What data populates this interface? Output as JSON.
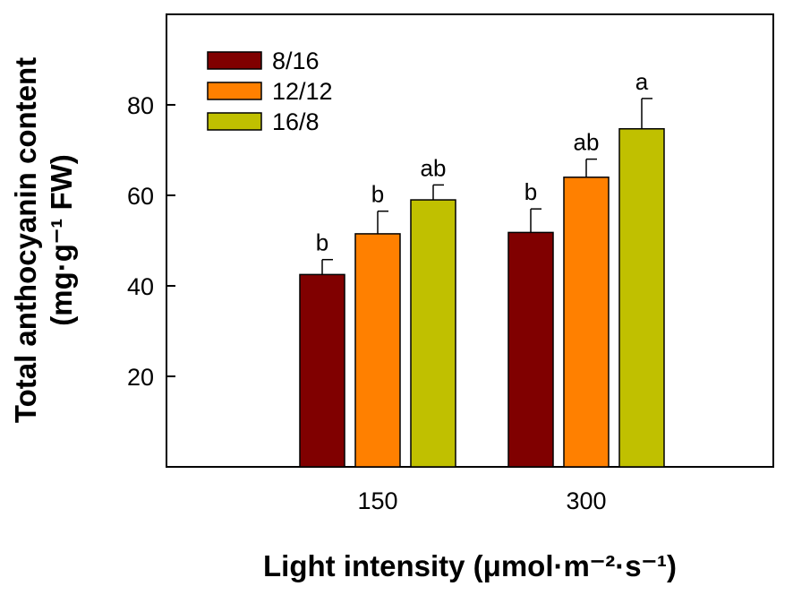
{
  "chart_data": {
    "type": "bar",
    "categories": [
      "150",
      "300"
    ],
    "series": [
      {
        "name": "8/16",
        "color": "#800000",
        "values": [
          42.5,
          51.8
        ],
        "errors": [
          3.3,
          5.2
        ],
        "labels": [
          "b",
          "b"
        ]
      },
      {
        "name": "12/12",
        "color": "#ff8000",
        "values": [
          51.5,
          64.0
        ],
        "errors": [
          5.0,
          4.0
        ],
        "labels": [
          "b",
          "ab"
        ]
      },
      {
        "name": "16/8",
        "color": "#c0c000",
        "values": [
          59.0,
          74.7
        ],
        "errors": [
          3.3,
          6.7
        ],
        "labels": [
          "ab",
          "a"
        ]
      }
    ],
    "ylim": [
      0,
      100
    ],
    "yticks": [
      20,
      40,
      60,
      80
    ],
    "xlabel": "Light intensity (μmol·m⁻²·s⁻¹)",
    "ylabel": "Total anthocyanin content",
    "ylabel_line2": "(mg·g⁻¹ FW)",
    "legend": "top-left",
    "grid": false
  }
}
